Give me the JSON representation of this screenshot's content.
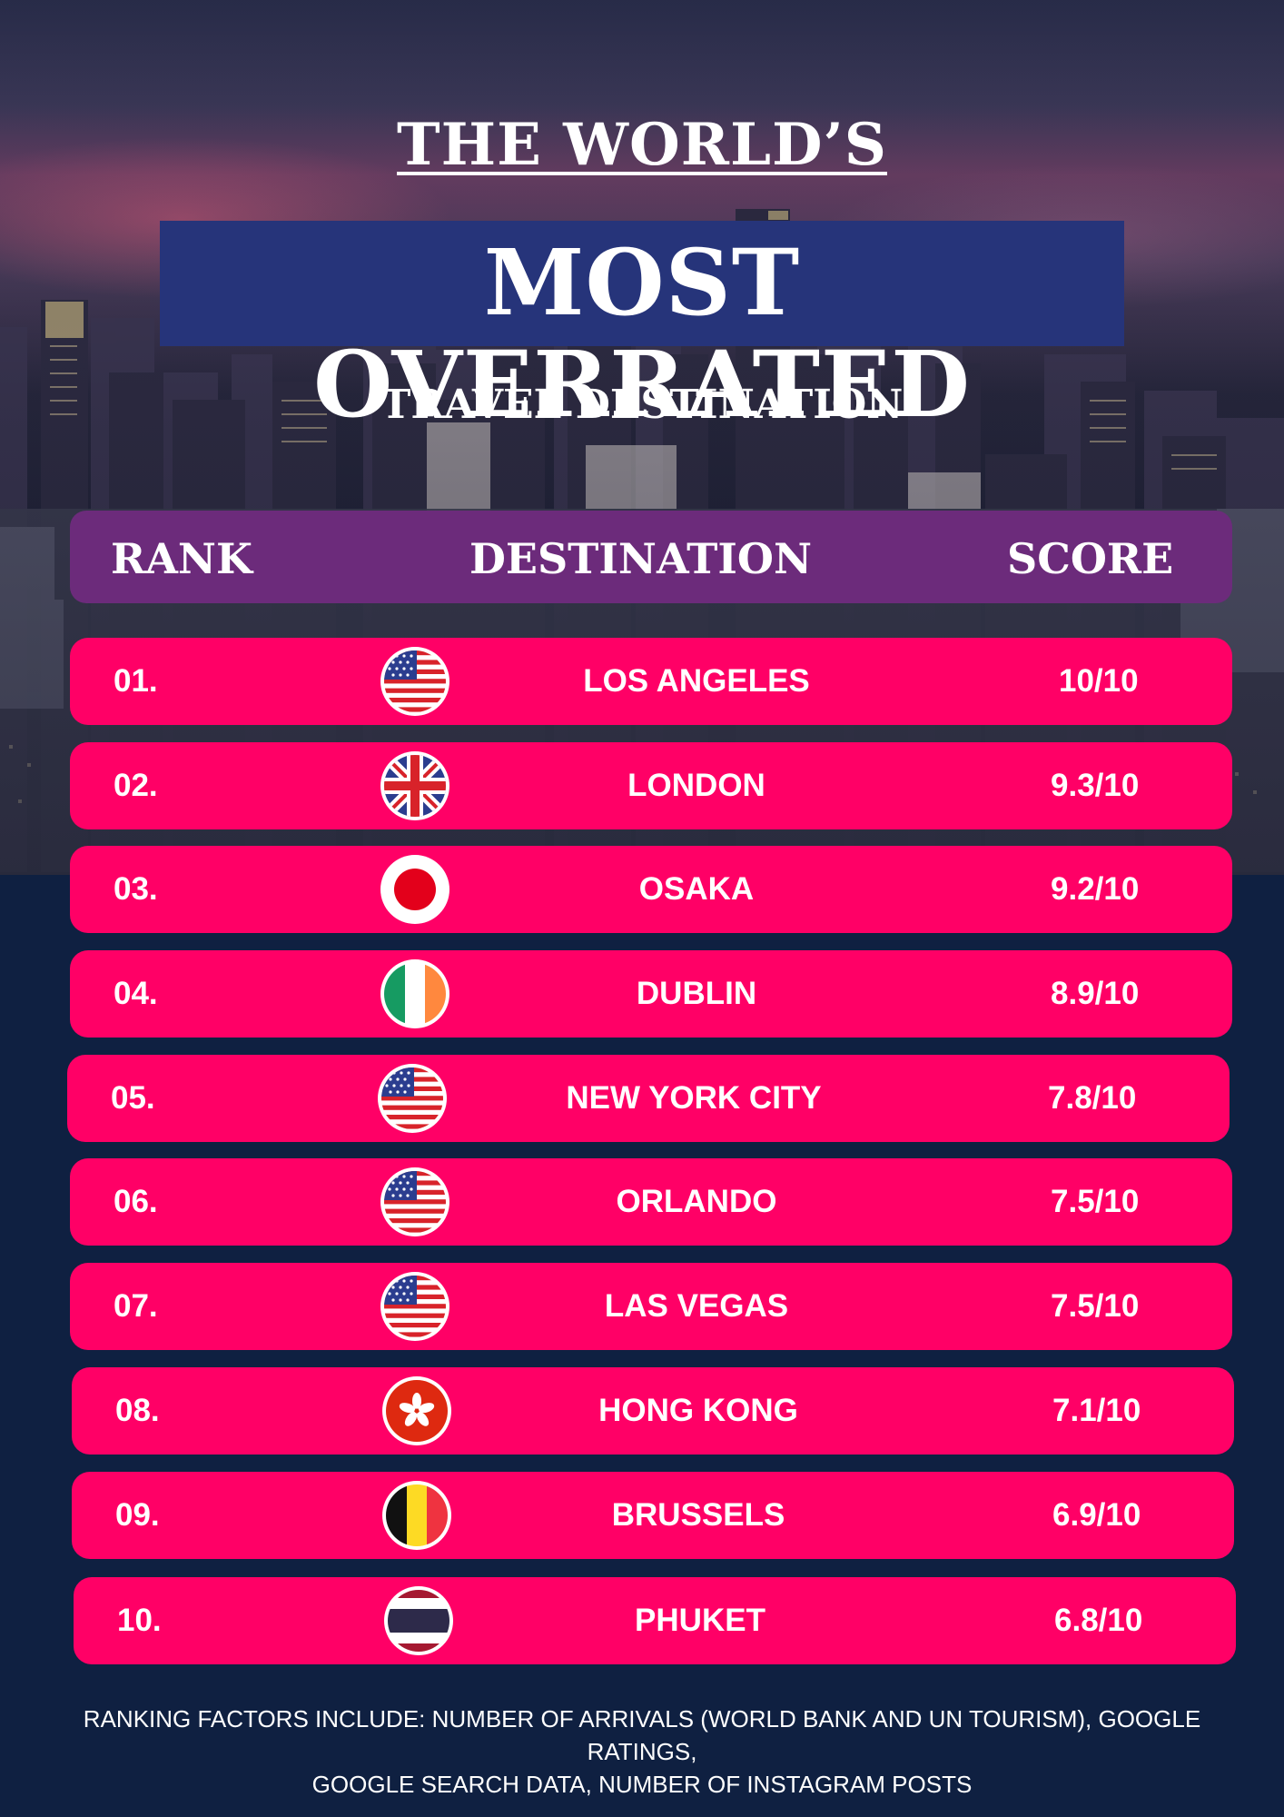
{
  "title": {
    "top": "THE WORLD’S",
    "main": "MOST OVERRATED",
    "sub": "TRAVEL DESTINATION"
  },
  "table": {
    "headers": {
      "rank": "RANK",
      "destination": "DESTINATION",
      "score": "SCORE"
    },
    "rows": [
      {
        "rank": "01.",
        "destination": "LOS ANGELES",
        "score": "10/10",
        "flag_icon": "usa-flag-icon"
      },
      {
        "rank": "02.",
        "destination": "LONDON",
        "score": "9.3/10",
        "flag_icon": "uk-flag-icon"
      },
      {
        "rank": "03.",
        "destination": "OSAKA",
        "score": "9.2/10",
        "flag_icon": "japan-flag-icon"
      },
      {
        "rank": "04.",
        "destination": "DUBLIN",
        "score": "8.9/10",
        "flag_icon": "ireland-flag-icon"
      },
      {
        "rank": "05.",
        "destination": "NEW YORK CITY",
        "score": "7.8/10",
        "flag_icon": "usa-flag-icon"
      },
      {
        "rank": "06.",
        "destination": "ORLANDO",
        "score": "7.5/10",
        "flag_icon": "usa-flag-icon"
      },
      {
        "rank": "07.",
        "destination": "LAS VEGAS",
        "score": "7.5/10",
        "flag_icon": "usa-flag-icon"
      },
      {
        "rank": "08.",
        "destination": "HONG KONG",
        "score": "7.1/10",
        "flag_icon": "hong-kong-flag-icon"
      },
      {
        "rank": "09.",
        "destination": "BRUSSELS",
        "score": "6.9/10",
        "flag_icon": "belgium-flag-icon"
      },
      {
        "rank": "10.",
        "destination": "PHUKET",
        "score": "6.8/10",
        "flag_icon": "thailand-flag-icon"
      }
    ]
  },
  "footnote": {
    "line1": "RANKING FACTORS INCLUDE: NUMBER OF ARRIVALS (WORLD BANK AND UN TOURISM), GOOGLE RATINGS,",
    "line2": "GOOGLE SEARCH DATA, NUMBER OF INSTAGRAM POSTS"
  },
  "colors": {
    "background": "#0f2041",
    "title_box": "#26347a",
    "header_bar": "#6c2b7b",
    "row": "#ff0066",
    "text": "#ffffff"
  }
}
